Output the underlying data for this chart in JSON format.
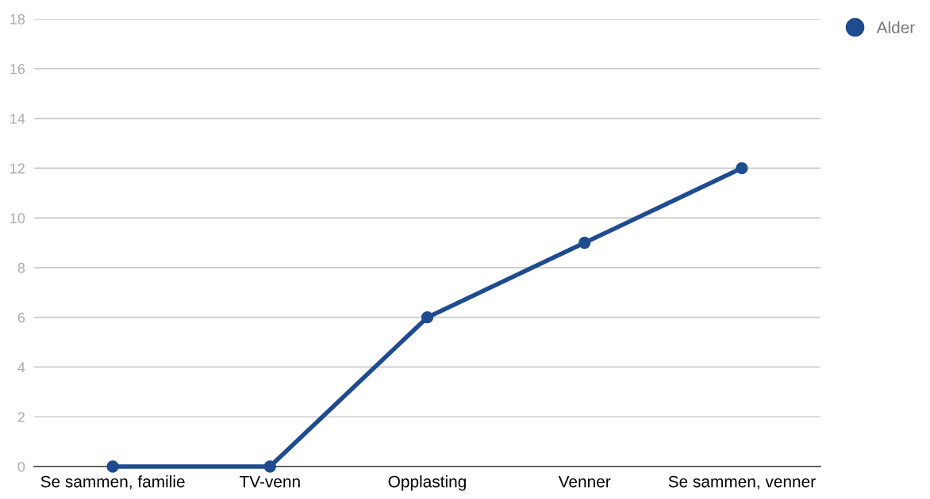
{
  "chart_data": {
    "type": "line",
    "categories": [
      "Se sammen, familie",
      "TV-venn",
      "Opplasting",
      "Venner",
      "Se sammen, venner"
    ],
    "series": [
      {
        "name": "Alder",
        "color": "#1f4b8f",
        "values": [
          0,
          0,
          6,
          9,
          12
        ]
      }
    ],
    "ylim": [
      0,
      18
    ],
    "yticks": [
      0,
      2,
      4,
      6,
      8,
      10,
      12,
      14,
      16,
      18
    ],
    "grid": "y",
    "legend": "top right",
    "marker": "circle",
    "line_style": "solid"
  }
}
